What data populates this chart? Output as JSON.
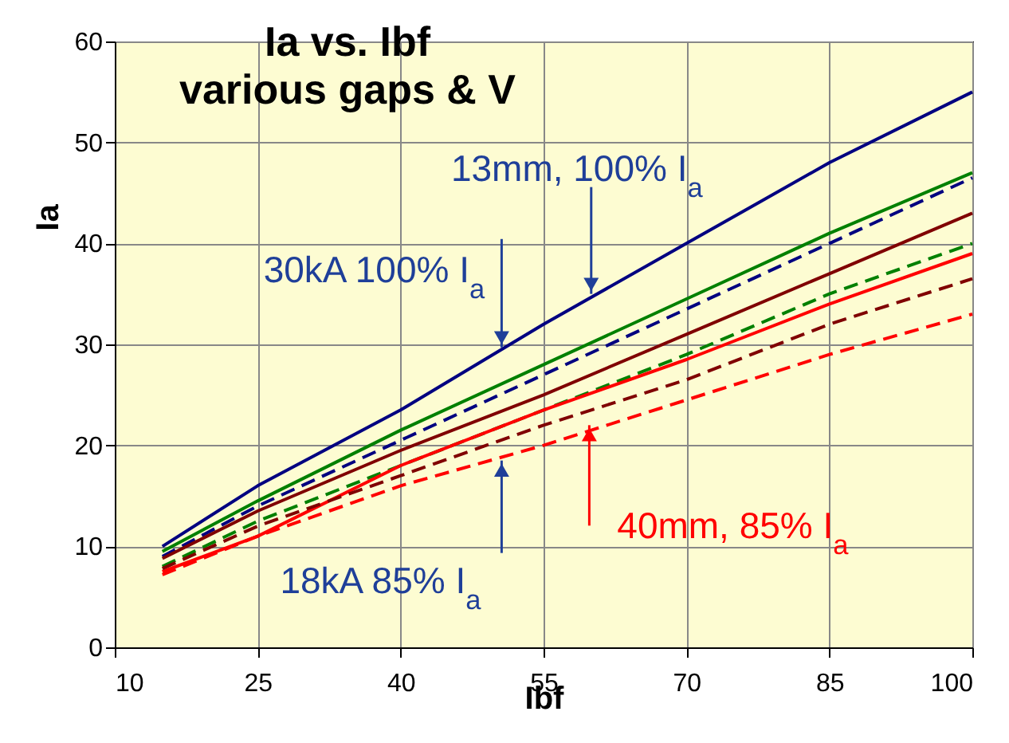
{
  "chart_data": {
    "type": "line",
    "title": "Ia vs. Ibf",
    "subtitle": "various gaps & V",
    "xlabel": "Ibf",
    "ylabel": "Ia",
    "x": [
      15,
      25,
      40,
      55,
      70,
      85,
      100
    ],
    "series": [
      {
        "color": "#000080",
        "line_style": "solid",
        "values": [
          10,
          16,
          23.5,
          32,
          40,
          48,
          55
        ]
      },
      {
        "color": "#008000",
        "line_style": "solid",
        "values": [
          9.5,
          14.5,
          21.5,
          28,
          34.5,
          41,
          47
        ]
      },
      {
        "color": "#000080",
        "line_style": "dashed",
        "values": [
          9,
          14,
          20.5,
          27,
          33.5,
          40,
          46.5
        ]
      },
      {
        "color": "#800000",
        "line_style": "solid",
        "values": [
          8.8,
          13.5,
          19.5,
          25,
          31,
          37,
          43
        ]
      },
      {
        "color": "#008000",
        "line_style": "dashed",
        "values": [
          8,
          12.5,
          18,
          23.5,
          29,
          35,
          40
        ]
      },
      {
        "color": "#ff0000",
        "line_style": "solid",
        "values": [
          7.5,
          11,
          18,
          23.5,
          28.5,
          34,
          39
        ]
      },
      {
        "color": "#800000",
        "line_style": "dashed",
        "values": [
          7.8,
          12,
          17,
          22,
          26.5,
          32,
          36.5
        ]
      },
      {
        "color": "#ff0000",
        "line_style": "dashed",
        "values": [
          7.2,
          11,
          16,
          20,
          24.5,
          29,
          33
        ]
      }
    ],
    "xlim": [
      10,
      100
    ],
    "xticks": [
      10,
      25,
      40,
      55,
      70,
      85,
      100
    ],
    "ylim": [
      0,
      60
    ],
    "yticks": [
      0,
      10,
      20,
      30,
      40,
      50,
      60
    ],
    "grid": true,
    "marker": "none",
    "annotations": [
      {
        "text": "13mm, 100% I$_{a}$",
        "x": 60,
        "y": 35
      },
      {
        "text": "30kA 100% I$_{a}$",
        "x": 50.6,
        "y": 29.7
      },
      {
        "text": "18kA 85% I$_{a}$",
        "x": 50.6,
        "y": 18.5
      },
      {
        "text": "40mm, 85% I$_{a}$",
        "x": 59.8,
        "y": 22
      }
    ]
  }
}
